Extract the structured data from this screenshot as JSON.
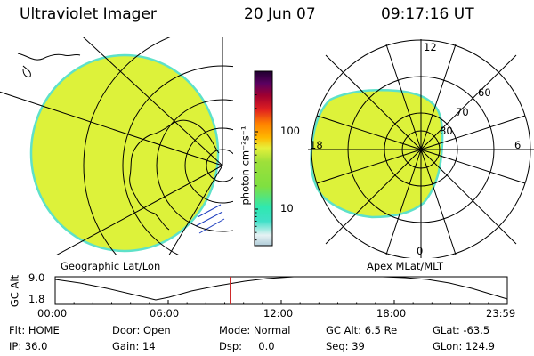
{
  "header": {
    "instrument": "Ultraviolet Imager",
    "date": "20 Jun 07",
    "time": "09:17:16 UT"
  },
  "colors": {
    "fill": "#ddf23a",
    "edge": "#5ee1c9",
    "line": "#000000",
    "marker": "#cc2222"
  },
  "colorbar": {
    "unit": "photon cm⁻²s⁻¹",
    "ticks": [
      {
        "label": "100",
        "value": 100
      },
      {
        "label": "10",
        "value": 10
      }
    ],
    "stops": [
      "#b0ccd8",
      "#e6f2f4",
      "#40e0c8",
      "#2fe8b0",
      "#7fe040",
      "#9ee03a",
      "#e6f03a",
      "#ffb800",
      "#ff8000",
      "#e02020",
      "#a00030",
      "#5a0060",
      "#200030"
    ]
  },
  "left_panel": {
    "caption": "Geographic Lat/Lon"
  },
  "right_panel": {
    "caption": "Apex MLat/MLT",
    "mlt_labels": {
      "top": "12",
      "left": "18",
      "right": "6",
      "bottom": "0"
    },
    "lat_labels": [
      "60",
      "70",
      "80"
    ]
  },
  "timeline": {
    "ylabel": "GC Alt",
    "ymax": "9.0",
    "ymin": "1.8",
    "xticks": [
      "00:00",
      "06:00",
      "12:00",
      "18:00",
      "23:59"
    ],
    "current_time_hours": 9.29
  },
  "footer": [
    [
      "Flt: HOME",
      "Door: Open",
      "Mode: Normal",
      "GC Alt: 6.5 Re",
      "GLat: -63.5"
    ],
    [
      "IP: 36.0",
      "Gain: 14",
      "Dsp:     0.0",
      "Seq: 39",
      "GLon: 124.9"
    ]
  ]
}
